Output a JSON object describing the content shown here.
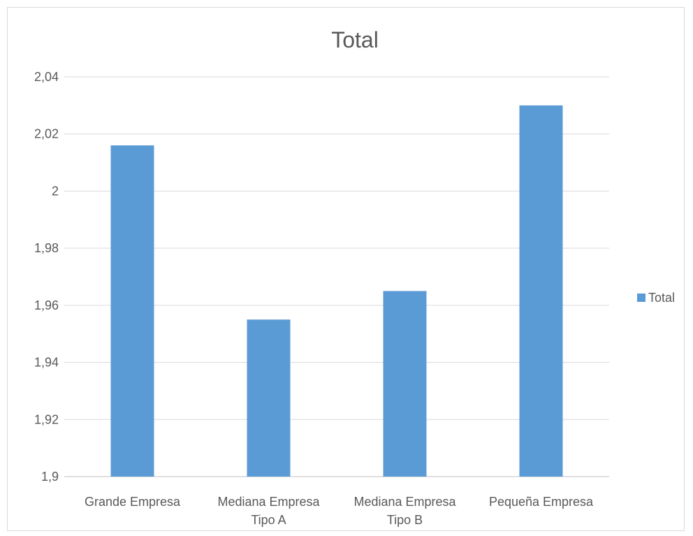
{
  "chart_data": {
    "type": "bar",
    "title": "Total",
    "categories": [
      "Grande Empresa",
      "Mediana Empresa Tipo A",
      "Mediana Empresa Tipo B",
      "Pequeña Empresa"
    ],
    "category_lines": [
      [
        "Grande Empresa"
      ],
      [
        "Mediana Empresa",
        "Tipo A"
      ],
      [
        "Mediana Empresa",
        "Tipo B"
      ],
      [
        "Pequeña Empresa"
      ]
    ],
    "series": [
      {
        "name": "Total",
        "values": [
          2.016,
          1.955,
          1.965,
          2.03
        ],
        "color": "#5b9bd5"
      }
    ],
    "ylim": [
      1.9,
      2.04
    ],
    "yticks": [
      "1,9",
      "1,92",
      "1,94",
      "1,96",
      "1,98",
      "2",
      "2,02",
      "2,04"
    ],
    "ytick_values": [
      1.9,
      1.92,
      1.94,
      1.96,
      1.98,
      2.0,
      2.02,
      2.04
    ],
    "grid": true,
    "legend_position": "right",
    "xlabel": "",
    "ylabel": ""
  }
}
